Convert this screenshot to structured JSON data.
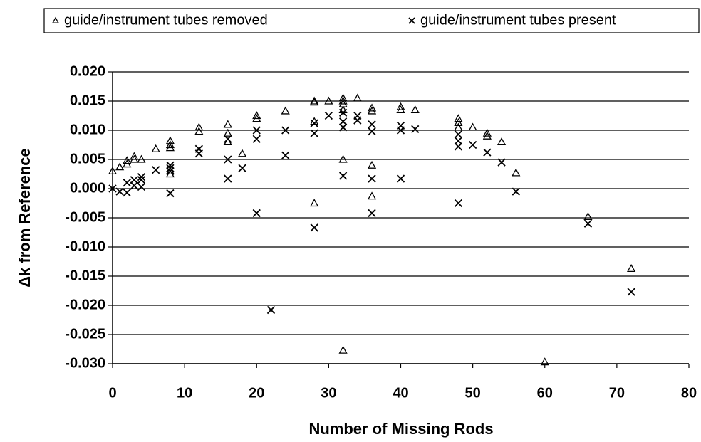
{
  "chart_data": {
    "type": "scatter",
    "xlabel": "Number of Missing Rods",
    "ylabel": "Δk from Reference",
    "xlim": [
      0,
      80
    ],
    "xticks": [
      0,
      10,
      20,
      30,
      40,
      50,
      60,
      70,
      80
    ],
    "ylim": [
      -0.03,
      0.02
    ],
    "yticks": [
      {
        "value": 0.02,
        "label": "0.020"
      },
      {
        "value": 0.015,
        "label": "0.015"
      },
      {
        "value": 0.01,
        "label": "0.010"
      },
      {
        "value": 0.005,
        "label": "0.005"
      },
      {
        "value": 0,
        "label": "0.000"
      },
      {
        "value": -0.005,
        "label": "-0.005"
      },
      {
        "value": -0.01,
        "label": "-0.010"
      },
      {
        "value": -0.015,
        "label": "-0.015"
      },
      {
        "value": -0.02,
        "label": "-0.020"
      },
      {
        "value": -0.025,
        "label": "-0.025"
      },
      {
        "value": -0.03,
        "label": "-0.030"
      }
    ],
    "grid": true,
    "legend": "top",
    "series": [
      {
        "name": "guide/instrument tubes removed",
        "marker": "triangle",
        "color": "#000000",
        "x": [
          0,
          1,
          2,
          2,
          3,
          3,
          4,
          6,
          8,
          8,
          8,
          8,
          8,
          12,
          12,
          16,
          16,
          16,
          18,
          20,
          20,
          24,
          28,
          28,
          28,
          28,
          30,
          32,
          32,
          32,
          32,
          32,
          32,
          34,
          36,
          36,
          36,
          36,
          40,
          40,
          42,
          48,
          48,
          48,
          50,
          52,
          52,
          54,
          56,
          60,
          66,
          72
        ],
        "values": [
          0.003,
          0.0037,
          0.0042,
          0.0048,
          0.0055,
          0.005,
          0.005,
          0.0068,
          0.0082,
          0.0075,
          0.007,
          0.003,
          0.0025,
          0.0105,
          0.0098,
          0.011,
          0.0095,
          0.008,
          0.006,
          0.0125,
          0.012,
          0.0133,
          0.015,
          0.0148,
          0.0115,
          -0.0025,
          0.015,
          0.0155,
          0.015,
          0.0145,
          0.0135,
          0.005,
          -0.0277,
          0.0155,
          0.0138,
          0.0133,
          0.004,
          -0.0013,
          0.014,
          0.0135,
          0.0135,
          0.012,
          0.0113,
          0.0105,
          0.0105,
          0.0095,
          0.009,
          0.008,
          0.0027,
          -0.0297,
          -0.0048,
          -0.0137
        ]
      },
      {
        "name": "guide/instrument tubes present",
        "marker": "cross",
        "color": "#000000",
        "x": [
          0,
          1,
          2,
          2,
          3,
          3,
          4,
          4,
          4,
          6,
          8,
          8,
          8,
          8,
          12,
          12,
          16,
          16,
          16,
          18,
          20,
          20,
          20,
          22,
          24,
          24,
          28,
          28,
          28,
          30,
          32,
          32,
          32,
          32,
          34,
          34,
          36,
          36,
          36,
          36,
          40,
          40,
          40,
          42,
          48,
          48,
          48,
          48,
          50,
          52,
          54,
          56,
          66,
          72
        ],
        "values": [
          0,
          -0.0005,
          -0.0007,
          0.001,
          0.0015,
          0.0005,
          0.0015,
          0.0003,
          0.002,
          0.0032,
          0.004,
          0.0035,
          0.003,
          -0.0008,
          0.0068,
          0.006,
          0.0085,
          0.005,
          0.0017,
          0.0035,
          0.01,
          0.0085,
          -0.0042,
          -0.0208,
          0.01,
          0.0057,
          0.0112,
          0.0095,
          -0.0067,
          0.0125,
          0.013,
          0.0115,
          0.0105,
          0.0022,
          0.0125,
          0.0117,
          0.011,
          0.0098,
          0.0017,
          -0.0042,
          0.0108,
          0.01,
          0.0017,
          0.0102,
          0.0093,
          0.0082,
          0.0072,
          -0.0025,
          0.0075,
          0.0062,
          0.0045,
          -0.0005,
          -0.006,
          -0.0177
        ]
      }
    ]
  }
}
